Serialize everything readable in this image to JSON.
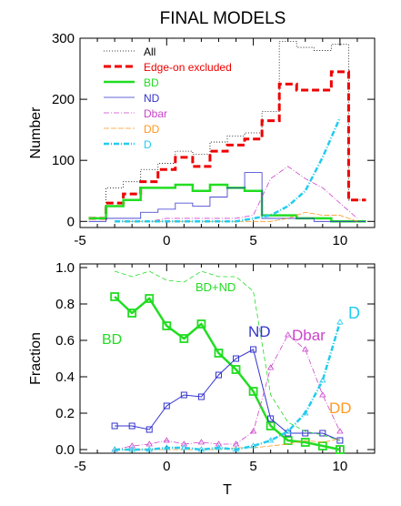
{
  "title": "FINAL MODELS",
  "chart_data": [
    {
      "type": "line",
      "title": "FINAL MODELS",
      "xlabel": "",
      "ylabel": "Number",
      "xlim": [
        -5,
        12
      ],
      "ylim": [
        -10,
        300
      ],
      "xticks": [
        -5,
        0,
        5,
        10
      ],
      "yticks": [
        0,
        100,
        200,
        300
      ],
      "legend_position": "top-left",
      "series": [
        {
          "name": "All",
          "color": "#000000",
          "dash": "1,2",
          "width": 0.8,
          "step": true,
          "x": [
            -4,
            -3,
            -2,
            -1,
            0,
            1,
            2,
            3,
            4,
            5,
            6,
            7,
            8,
            9,
            10,
            11
          ],
          "y": [
            5,
            55,
            65,
            85,
            95,
            115,
            110,
            130,
            140,
            145,
            180,
            295,
            285,
            280,
            290,
            35
          ]
        },
        {
          "name": "Edge-on excluded",
          "color": "#ee0000",
          "dash": "8,4",
          "width": 3,
          "step": true,
          "x": [
            -4,
            -3,
            -2,
            -1,
            0,
            1,
            2,
            3,
            4,
            5,
            6,
            7,
            8,
            9,
            10,
            11
          ],
          "y": [
            5,
            30,
            45,
            65,
            85,
            105,
            90,
            115,
            125,
            135,
            165,
            225,
            215,
            215,
            245,
            35
          ]
        },
        {
          "name": "BD",
          "color": "#22dd22",
          "dash": "",
          "width": 2.5,
          "step": true,
          "x": [
            -4,
            -3,
            -2,
            -1,
            0,
            1,
            2,
            3,
            4,
            5,
            6,
            7,
            8,
            9,
            10,
            11
          ],
          "y": [
            5,
            25,
            35,
            55,
            55,
            60,
            50,
            60,
            55,
            50,
            10,
            10,
            5,
            5,
            0,
            0
          ]
        },
        {
          "name": "ND",
          "color": "#3333cc",
          "dash": "",
          "width": 0.8,
          "step": true,
          "x": [
            -4,
            -3,
            -2,
            -1,
            0,
            1,
            2,
            3,
            4,
            5,
            6,
            7,
            8,
            9,
            10,
            11
          ],
          "y": [
            0,
            5,
            5,
            15,
            20,
            30,
            25,
            40,
            55,
            80,
            5,
            5,
            5,
            0,
            0,
            0
          ]
        },
        {
          "name": "Dbar",
          "color": "#cc44cc",
          "dash": "6,2,1,2",
          "width": 0.8,
          "step": false,
          "x": [
            -3,
            -2,
            -1,
            0,
            1,
            2,
            3,
            4,
            5,
            6,
            7,
            8,
            9,
            10,
            11
          ],
          "y": [
            0,
            0,
            0,
            5,
            5,
            5,
            5,
            5,
            10,
            70,
            90,
            70,
            55,
            30,
            5
          ]
        },
        {
          "name": "DD",
          "color": "#ff9922",
          "dash": "6,2",
          "width": 0.8,
          "step": false,
          "x": [
            -3,
            -2,
            -1,
            0,
            1,
            2,
            3,
            4,
            5,
            6,
            7,
            8,
            9,
            10,
            11
          ],
          "y": [
            0,
            0,
            0,
            0,
            0,
            0,
            0,
            0,
            0,
            0,
            5,
            15,
            10,
            10,
            0
          ]
        },
        {
          "name": "D",
          "color": "#22ccee",
          "dash": "6,2,1,2",
          "width": 2.5,
          "step": false,
          "x": [
            -3,
            -2,
            -1,
            0,
            1,
            2,
            3,
            4,
            5,
            6,
            7,
            8,
            9,
            10
          ],
          "y": [
            0,
            0,
            0,
            0,
            0,
            0,
            0,
            0,
            5,
            10,
            25,
            50,
            105,
            170
          ]
        }
      ]
    },
    {
      "type": "line",
      "title": "",
      "xlabel": "T",
      "ylabel": "Fraction",
      "xlim": [
        -5,
        12
      ],
      "ylim": [
        -0.02,
        1.02
      ],
      "xticks": [
        -5,
        0,
        5,
        10
      ],
      "yticks": [
        0.0,
        0.2,
        0.4,
        0.6,
        0.8,
        1.0
      ],
      "ytick_labels": [
        "0.0",
        "0.2",
        "0.4",
        "0.6",
        "0.8",
        "1.0"
      ],
      "annotations": [
        "BD",
        "BD+ND",
        "ND",
        "Dbar",
        "D",
        "DD"
      ],
      "series": [
        {
          "name": "BD",
          "color": "#22dd22",
          "dash": "",
          "width": 2.5,
          "marker": "square",
          "x": [
            -3,
            -2,
            -1,
            0,
            1,
            2,
            3,
            4,
            5,
            6,
            7,
            8,
            9,
            10
          ],
          "y": [
            0.84,
            0.75,
            0.83,
            0.68,
            0.61,
            0.69,
            0.53,
            0.44,
            0.32,
            0.13,
            0.05,
            0.04,
            0.02,
            0.0
          ]
        },
        {
          "name": "ND",
          "color": "#3333cc",
          "dash": "",
          "width": 1,
          "marker": "square",
          "x": [
            -3,
            -2,
            -1,
            0,
            1,
            2,
            3,
            4,
            5,
            6,
            7,
            8,
            9,
            10
          ],
          "y": [
            0.13,
            0.13,
            0.11,
            0.24,
            0.3,
            0.29,
            0.41,
            0.5,
            0.55,
            0.17,
            0.09,
            0.09,
            0.09,
            0.05
          ]
        },
        {
          "name": "BD+ND",
          "color": "#22dd22",
          "dash": "5,3",
          "width": 0.8,
          "marker": "",
          "x": [
            -3,
            -2,
            -1,
            0,
            1,
            2,
            3,
            4,
            5,
            6,
            7,
            8,
            9,
            10
          ],
          "y": [
            0.98,
            0.95,
            0.98,
            0.93,
            0.92,
            0.98,
            0.95,
            0.95,
            0.87,
            0.3,
            0.15,
            0.1,
            0.08,
            0.05
          ]
        },
        {
          "name": "Dbar",
          "color": "#cc44cc",
          "dash": "6,2,1,2",
          "width": 0.8,
          "marker": "triangle",
          "x": [
            -3,
            -2,
            -1,
            0,
            1,
            2,
            3,
            4,
            5,
            6,
            7,
            8,
            9,
            10
          ],
          "y": [
            0.0,
            0.02,
            0.03,
            0.05,
            0.03,
            0.04,
            0.03,
            0.03,
            0.1,
            0.45,
            0.63,
            0.55,
            0.3,
            0.1
          ]
        },
        {
          "name": "DD",
          "color": "#ff9922",
          "dash": "6,2",
          "width": 0.8,
          "marker": "",
          "x": [
            -3,
            -2,
            -1,
            0,
            1,
            2,
            3,
            4,
            5,
            6,
            7,
            8,
            9,
            10
          ],
          "y": [
            0.0,
            0.0,
            0.0,
            0.0,
            0.0,
            0.0,
            0.0,
            0.01,
            0.01,
            0.02,
            0.03,
            0.05,
            0.04,
            0.06
          ]
        },
        {
          "name": "D",
          "color": "#22ccee",
          "dash": "6,2,1,2",
          "width": 2.5,
          "marker": "triangle",
          "x": [
            -3,
            -2,
            -1,
            0,
            1,
            2,
            3,
            4,
            5,
            6,
            7,
            8,
            9,
            10
          ],
          "y": [
            0.0,
            0.0,
            0.0,
            0.01,
            0.01,
            0.0,
            0.01,
            0.0,
            0.02,
            0.05,
            0.1,
            0.2,
            0.38,
            0.7
          ]
        }
      ]
    }
  ]
}
